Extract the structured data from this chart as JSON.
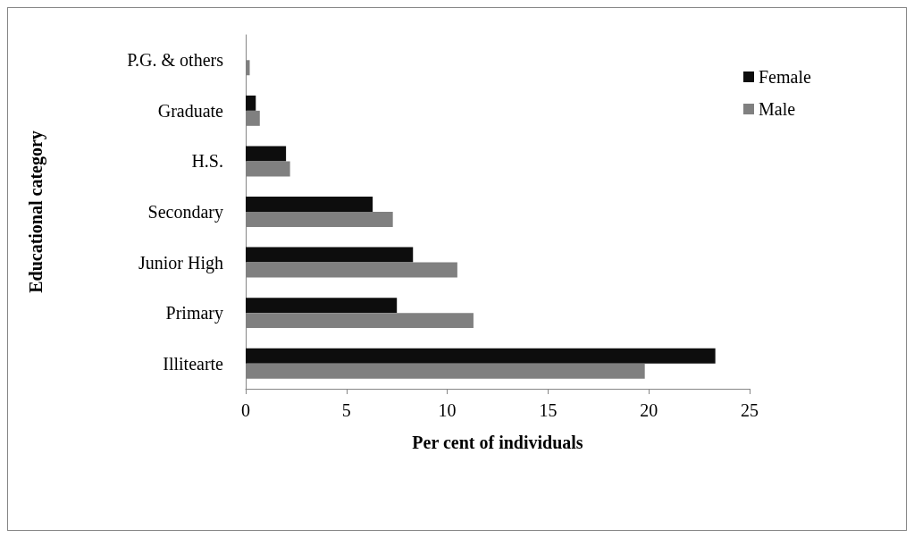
{
  "chart_data": {
    "type": "bar",
    "orientation": "horizontal",
    "xlabel": "Per cent of individuals",
    "ylabel": "Educational category",
    "categories": [
      "P.G. & others",
      "Graduate",
      "H.S.",
      "Secondary",
      "Junior High",
      "Primary",
      "Illitearte"
    ],
    "series": [
      {
        "name": "Female",
        "color": "#0d0d0d",
        "values": [
          0,
          0.5,
          2.0,
          6.3,
          8.3,
          7.5,
          23.3
        ]
      },
      {
        "name": "Male",
        "color": "#808080",
        "values": [
          0.2,
          0.7,
          2.2,
          7.3,
          10.5,
          11.3,
          19.8
        ]
      }
    ],
    "xlim": [
      0,
      25
    ],
    "xticks": [
      0,
      5,
      10,
      15,
      20,
      25
    ],
    "grid": false,
    "legend": "top right"
  }
}
